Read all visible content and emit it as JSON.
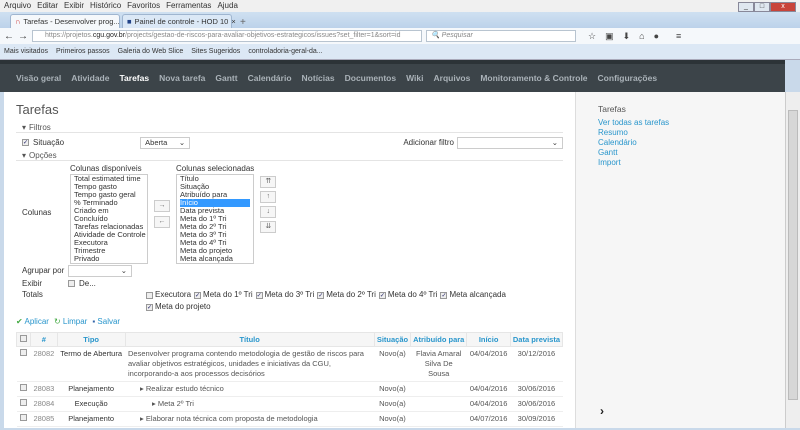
{
  "menu": [
    "Arquivo",
    "Editar",
    "Exibir",
    "Histórico",
    "Favoritos",
    "Ferramentas",
    "Ajuda"
  ],
  "tabs": [
    {
      "title": "Tarefas - Desenvolver prog...",
      "active": true
    },
    {
      "title": "Painel de controle - HOD 10",
      "active": false
    }
  ],
  "url": {
    "prefix": "https://projetos.",
    "domain": "cgu.gov.br",
    "rest": "/projects/gestao-de-riscos-para-avaliar-objetivos-estrategicos/issues?set_filter=1&sort=id"
  },
  "search_placeholder": "Pesquisar",
  "bookmarks": [
    "Mais visitados",
    "Primeiros passos",
    "Galeria do Web Slice",
    "Sites Sugeridos",
    "controladoria-geral-da..."
  ],
  "nav": [
    "Visão geral",
    "Atividade",
    "Tarefas",
    "Nova tarefa",
    "Gantt",
    "Calendário",
    "Notícias",
    "Documentos",
    "Wiki",
    "Arquivos",
    "Monitoramento & Controle",
    "Configurações"
  ],
  "nav_active": "Tarefas",
  "page_title": "Tarefas",
  "filters": {
    "legend": "Filtros",
    "situacao_label": "Situação",
    "situacao_value": "Aberta",
    "add_filter_label": "Adicionar filtro"
  },
  "options": {
    "legend": "Opções",
    "columns_label": "Colunas",
    "available_label": "Colunas disponíveis",
    "selected_label": "Colunas selecionadas",
    "available": [
      "Total estimated time",
      "Tempo gasto",
      "Tempo gasto geral",
      "% Terminado",
      "Criado em",
      "Concluído",
      "Tarefas relacionadas",
      "Atividade de Controle",
      "Executora",
      "Trimestre",
      "Privado"
    ],
    "selected": [
      "Título",
      "Situação",
      "Atribuído para",
      "Início",
      "Data prevista",
      "Meta do 1º Tri",
      "Meta do 2º Tri",
      "Meta do 3º Tri",
      "Meta do 4º Tri",
      "Meta do projeto",
      "Meta alcançada"
    ],
    "selected_highlight": "Início",
    "group_by_label": "Agrupar por",
    "show_label": "Exibir",
    "show_option": "De...",
    "totals_label": "Totals",
    "totals": [
      {
        "label": "Executora",
        "checked": false
      },
      {
        "label": "Meta do 1º Tri",
        "checked": true
      },
      {
        "label": "Meta do 3º Tri",
        "checked": true
      },
      {
        "label": "Meta do 2º Tri",
        "checked": true
      },
      {
        "label": "Meta do 4º Tri",
        "checked": true
      },
      {
        "label": "Meta alcançada",
        "checked": true
      },
      {
        "label": "Meta do projeto",
        "checked": true
      }
    ]
  },
  "actions": {
    "apply": "Aplicar",
    "clear": "Limpar",
    "save": "Salvar"
  },
  "table": {
    "headers": [
      "#",
      "Tipo",
      "Título",
      "Situação",
      "Atribuído para",
      "Início",
      "Data prevista"
    ],
    "rows": [
      {
        "id": "28082",
        "tipo": "Termo de Abertura",
        "titulo": "Desenvolver programa contendo metodologia de gestão de riscos para avaliar objetivos estratégicos, unidades e iniciativas da CGU, incorporando-a aos processos decisórios",
        "situacao": "Novo(a)",
        "atribuido": "Flavia Amaral Silva De Sousa",
        "inicio": "04/04/2016",
        "prevista": "30/12/2016",
        "level": 0
      },
      {
        "id": "28083",
        "tipo": "Planejamento",
        "titulo": "Realizar estudo técnico",
        "situacao": "Novo(a)",
        "atribuido": "",
        "inicio": "04/04/2016",
        "prevista": "30/06/2016",
        "level": 1
      },
      {
        "id": "28084",
        "tipo": "Execução",
        "titulo": "Meta 2º Tri",
        "situacao": "Novo(a)",
        "atribuido": "",
        "inicio": "04/04/2016",
        "prevista": "30/06/2016",
        "level": 2
      },
      {
        "id": "28085",
        "tipo": "Planejamento",
        "titulo": "Elaborar nota técnica com proposta de metodologia",
        "situacao": "Novo(a)",
        "atribuido": "",
        "inicio": "04/07/2016",
        "prevista": "30/09/2016",
        "level": 1
      }
    ]
  },
  "sidebar": {
    "title": "Tarefas",
    "links": [
      "Ver todas as tarefas",
      "Resumo",
      "Calendário",
      "Gantt",
      "Import"
    ]
  },
  "colors": {
    "nav_bg": "#3c4449",
    "link": "#2996cc",
    "arrow": "#ee1c25"
  }
}
